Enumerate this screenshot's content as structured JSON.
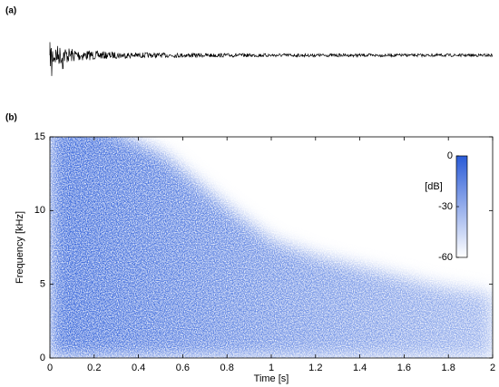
{
  "chart_data": [
    {
      "type": "waveform",
      "panel_label": "(a)",
      "color": "#000000"
    },
    {
      "type": "spectrogram",
      "panel_label": "(b)",
      "xlabel": "Time [s]",
      "ylabel": "Frequency [kHz]",
      "xlim": [
        0,
        2
      ],
      "xticks": [
        0,
        0.2,
        0.4,
        0.6,
        0.8,
        1,
        1.2,
        1.4,
        1.6,
        1.8,
        2
      ],
      "ylim": [
        0,
        15
      ],
      "yticks": [
        0,
        5,
        10,
        15
      ],
      "color": "#2a5bd7",
      "colorbar": {
        "label": "[dB]",
        "lim": [
          -60,
          0
        ],
        "ticks": [
          0,
          -30,
          -60
        ]
      }
    }
  ]
}
